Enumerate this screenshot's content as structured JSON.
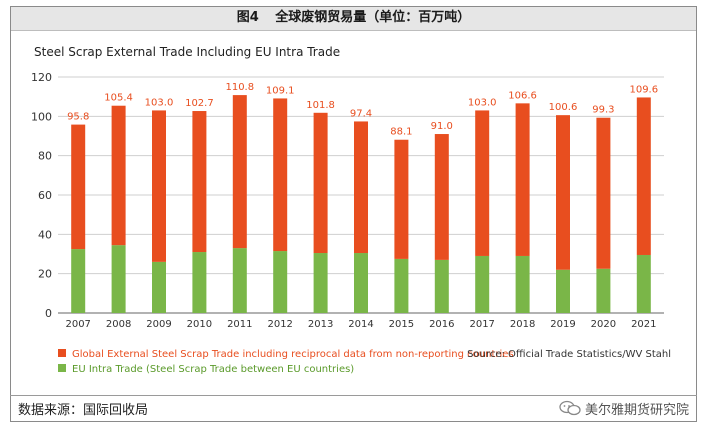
{
  "figure": {
    "number": "图4",
    "title": "全球废钢贸易量（单位：百万吨）"
  },
  "chart_data": {
    "type": "bar",
    "stacked": true,
    "title": "Steel Scrap External Trade Including EU Intra Trade",
    "categories": [
      "2007",
      "2008",
      "2009",
      "2010",
      "2011",
      "2012",
      "2013",
      "2014",
      "2015",
      "2016",
      "2017",
      "2018",
      "2019",
      "2020",
      "2021"
    ],
    "totals": [
      95.8,
      105.4,
      103.0,
      102.7,
      110.8,
      109.1,
      101.8,
      97.4,
      88.1,
      91.0,
      103.0,
      106.6,
      100.6,
      99.3,
      109.6
    ],
    "total_labels": [
      "95.8",
      "105.4",
      "103.0",
      "102.7",
      "110.8",
      "109.1",
      "101.8",
      "97.4",
      "88.1",
      "91.0",
      "103.0",
      "106.6",
      "100.6",
      "99.3",
      "109.6"
    ],
    "series": [
      {
        "name": "EU Intra Trade (Steel Scrap Trade between EU countries)",
        "color": "#7ab648",
        "values": [
          32.5,
          34.5,
          26.0,
          31.0,
          33.0,
          31.5,
          30.5,
          30.5,
          27.5,
          27.0,
          29.0,
          29.0,
          22.0,
          22.5,
          29.5
        ]
      },
      {
        "name": "Global External Steel Scrap Trade including reciprocal data from non-reporting countries",
        "color": "#e84e1f",
        "values": [
          63.3,
          70.9,
          77.0,
          71.7,
          77.8,
          77.6,
          71.3,
          66.9,
          60.6,
          64.0,
          74.0,
          77.6,
          78.6,
          76.8,
          80.1
        ]
      }
    ],
    "ylim": [
      0,
      120
    ],
    "yticks": [
      0,
      20,
      40,
      60,
      80,
      100,
      120
    ],
    "grid": true,
    "source": "Source: Official Trade Statistics/WV Stahl"
  },
  "footer": {
    "source": "数据来源：国际回收局",
    "watermark": "美尔雅期货研究院"
  }
}
